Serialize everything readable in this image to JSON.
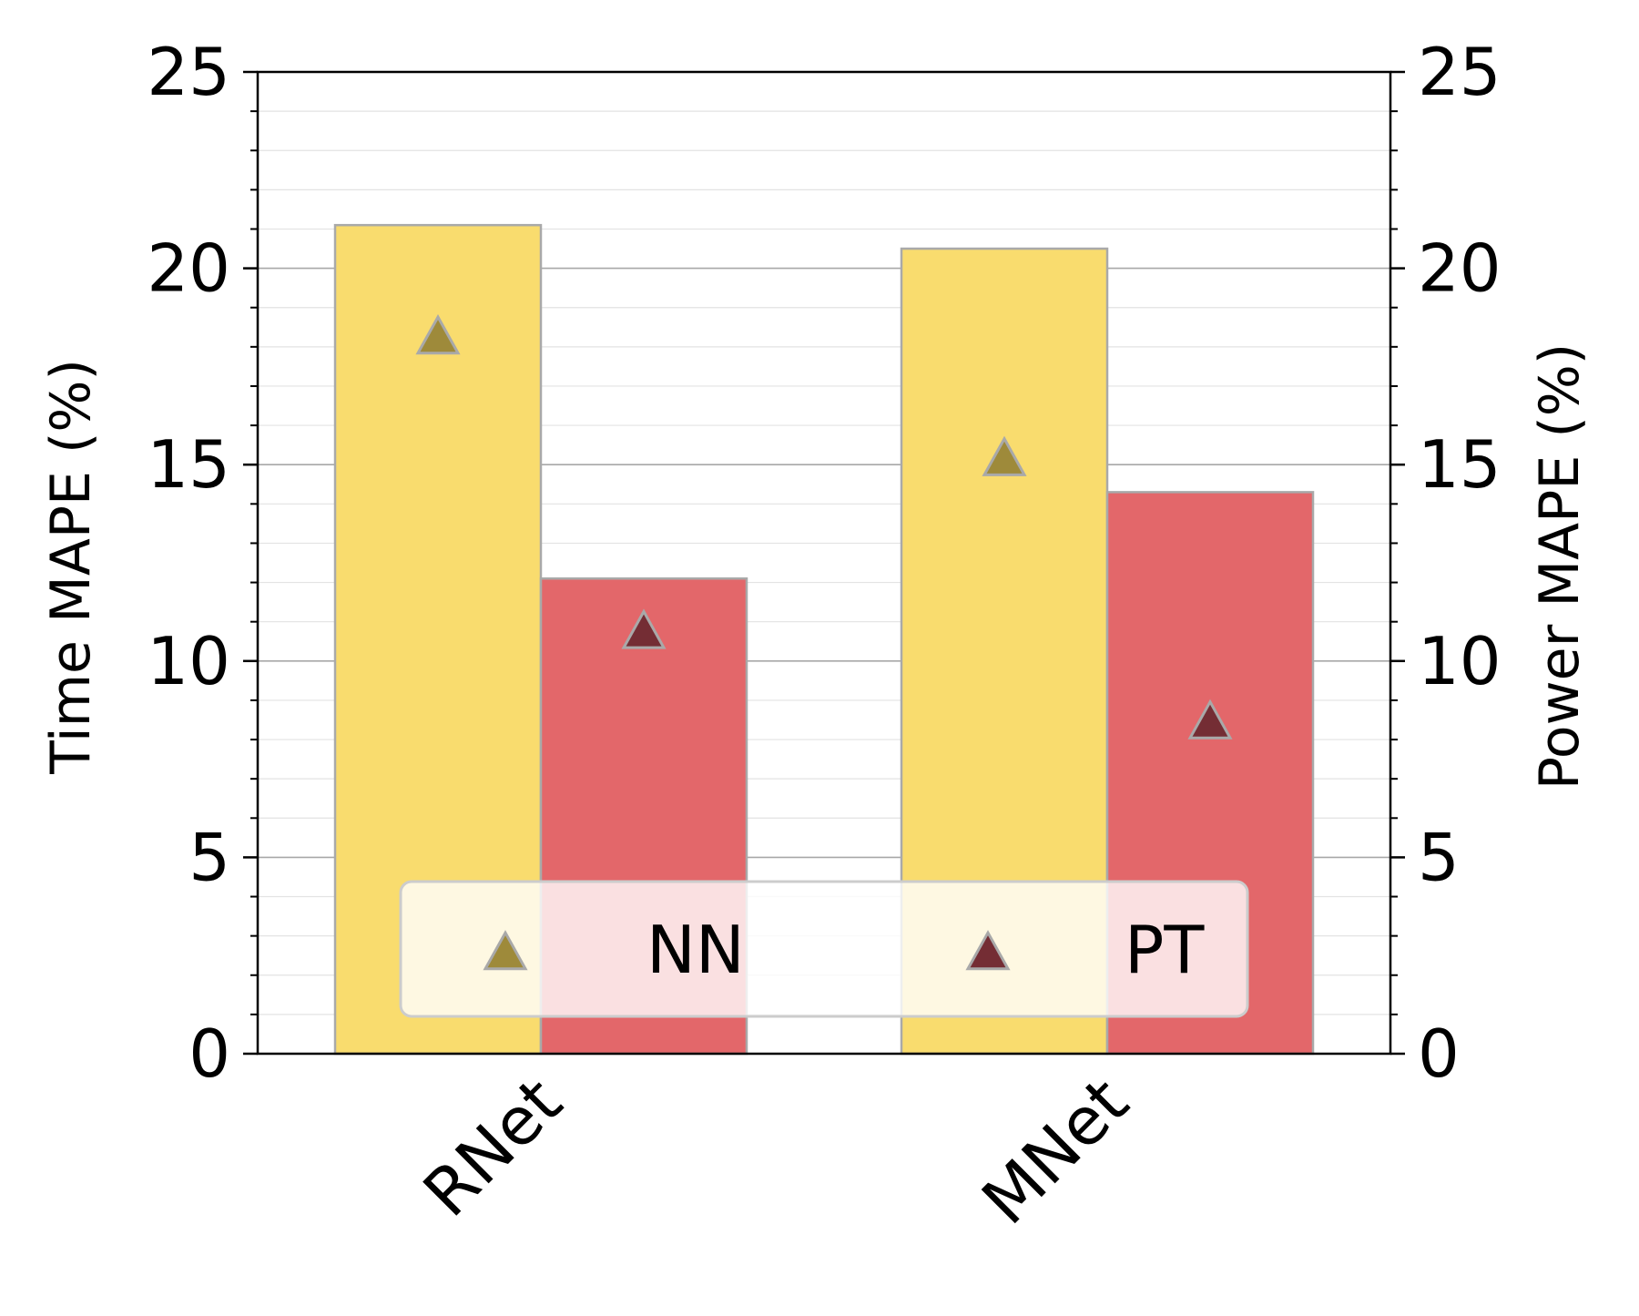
{
  "chart_data": {
    "type": "bar",
    "categories": [
      "RNet",
      "MNet"
    ],
    "title": "",
    "xlabel": "",
    "ylabel": "Time MAPE (%)",
    "y2label": "Power MAPE (%)",
    "ylim": [
      0,
      25
    ],
    "y2lim": [
      0,
      25
    ],
    "yticks": [
      0,
      5,
      10,
      15,
      20,
      25
    ],
    "grid": true,
    "legend_position": "bottom-center",
    "series": [
      {
        "name": "NN",
        "axis": "left",
        "kind": "bar",
        "color": "#f9dc6e",
        "values": [
          21.1,
          20.5
        ]
      },
      {
        "name": "PT",
        "axis": "left",
        "kind": "bar",
        "color": "#e3676a",
        "values": [
          12.1,
          14.3
        ]
      },
      {
        "name": "NN",
        "axis": "right",
        "kind": "marker",
        "marker": "triangle",
        "color": "#9e8a3a",
        "values": [
          18.3,
          15.2
        ]
      },
      {
        "name": "PT",
        "axis": "right",
        "kind": "marker",
        "marker": "triangle",
        "color": "#742d34",
        "values": [
          10.8,
          8.5
        ]
      }
    ],
    "legend": [
      {
        "label": "NN",
        "marker": "triangle",
        "color": "#9e8a3a"
      },
      {
        "label": "PT",
        "marker": "triangle",
        "color": "#742d34"
      }
    ]
  }
}
